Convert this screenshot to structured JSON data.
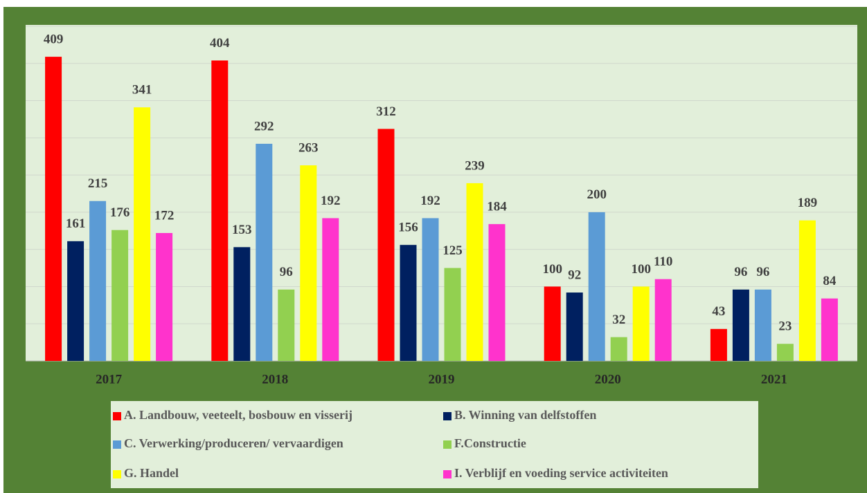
{
  "chart_data": {
    "type": "bar",
    "categories": [
      "2017",
      "2018",
      "2019",
      "2020",
      "2021"
    ],
    "series": [
      {
        "name": "A. Landbouw, veeteelt, bosbouw en visserij",
        "color": "#ff0000",
        "values": [
          409,
          404,
          312,
          100,
          43
        ]
      },
      {
        "name": "B. Winning van delfstoffen",
        "color": "#002060",
        "values": [
          161,
          153,
          156,
          92,
          96
        ]
      },
      {
        "name": "C. Verwerking/produceren/ vervaardigen",
        "color": "#5b9bd5",
        "values": [
          215,
          292,
          192,
          200,
          96
        ]
      },
      {
        "name": "F.Constructie",
        "color": "#92d050",
        "values": [
          176,
          96,
          125,
          32,
          23
        ]
      },
      {
        "name": "G. Handel",
        "color": "#ffff00",
        "values": [
          341,
          263,
          239,
          100,
          189
        ]
      },
      {
        "name": "I. Verblijf en voeding service activiteiten",
        "color": "#ff33cc",
        "values": [
          172,
          192,
          184,
          110,
          84
        ]
      }
    ],
    "ylim": [
      0,
      450
    ],
    "yticks": [
      0,
      50,
      100,
      150,
      200,
      250,
      300,
      350,
      400,
      450
    ],
    "grid": true,
    "legend": "bottom"
  }
}
